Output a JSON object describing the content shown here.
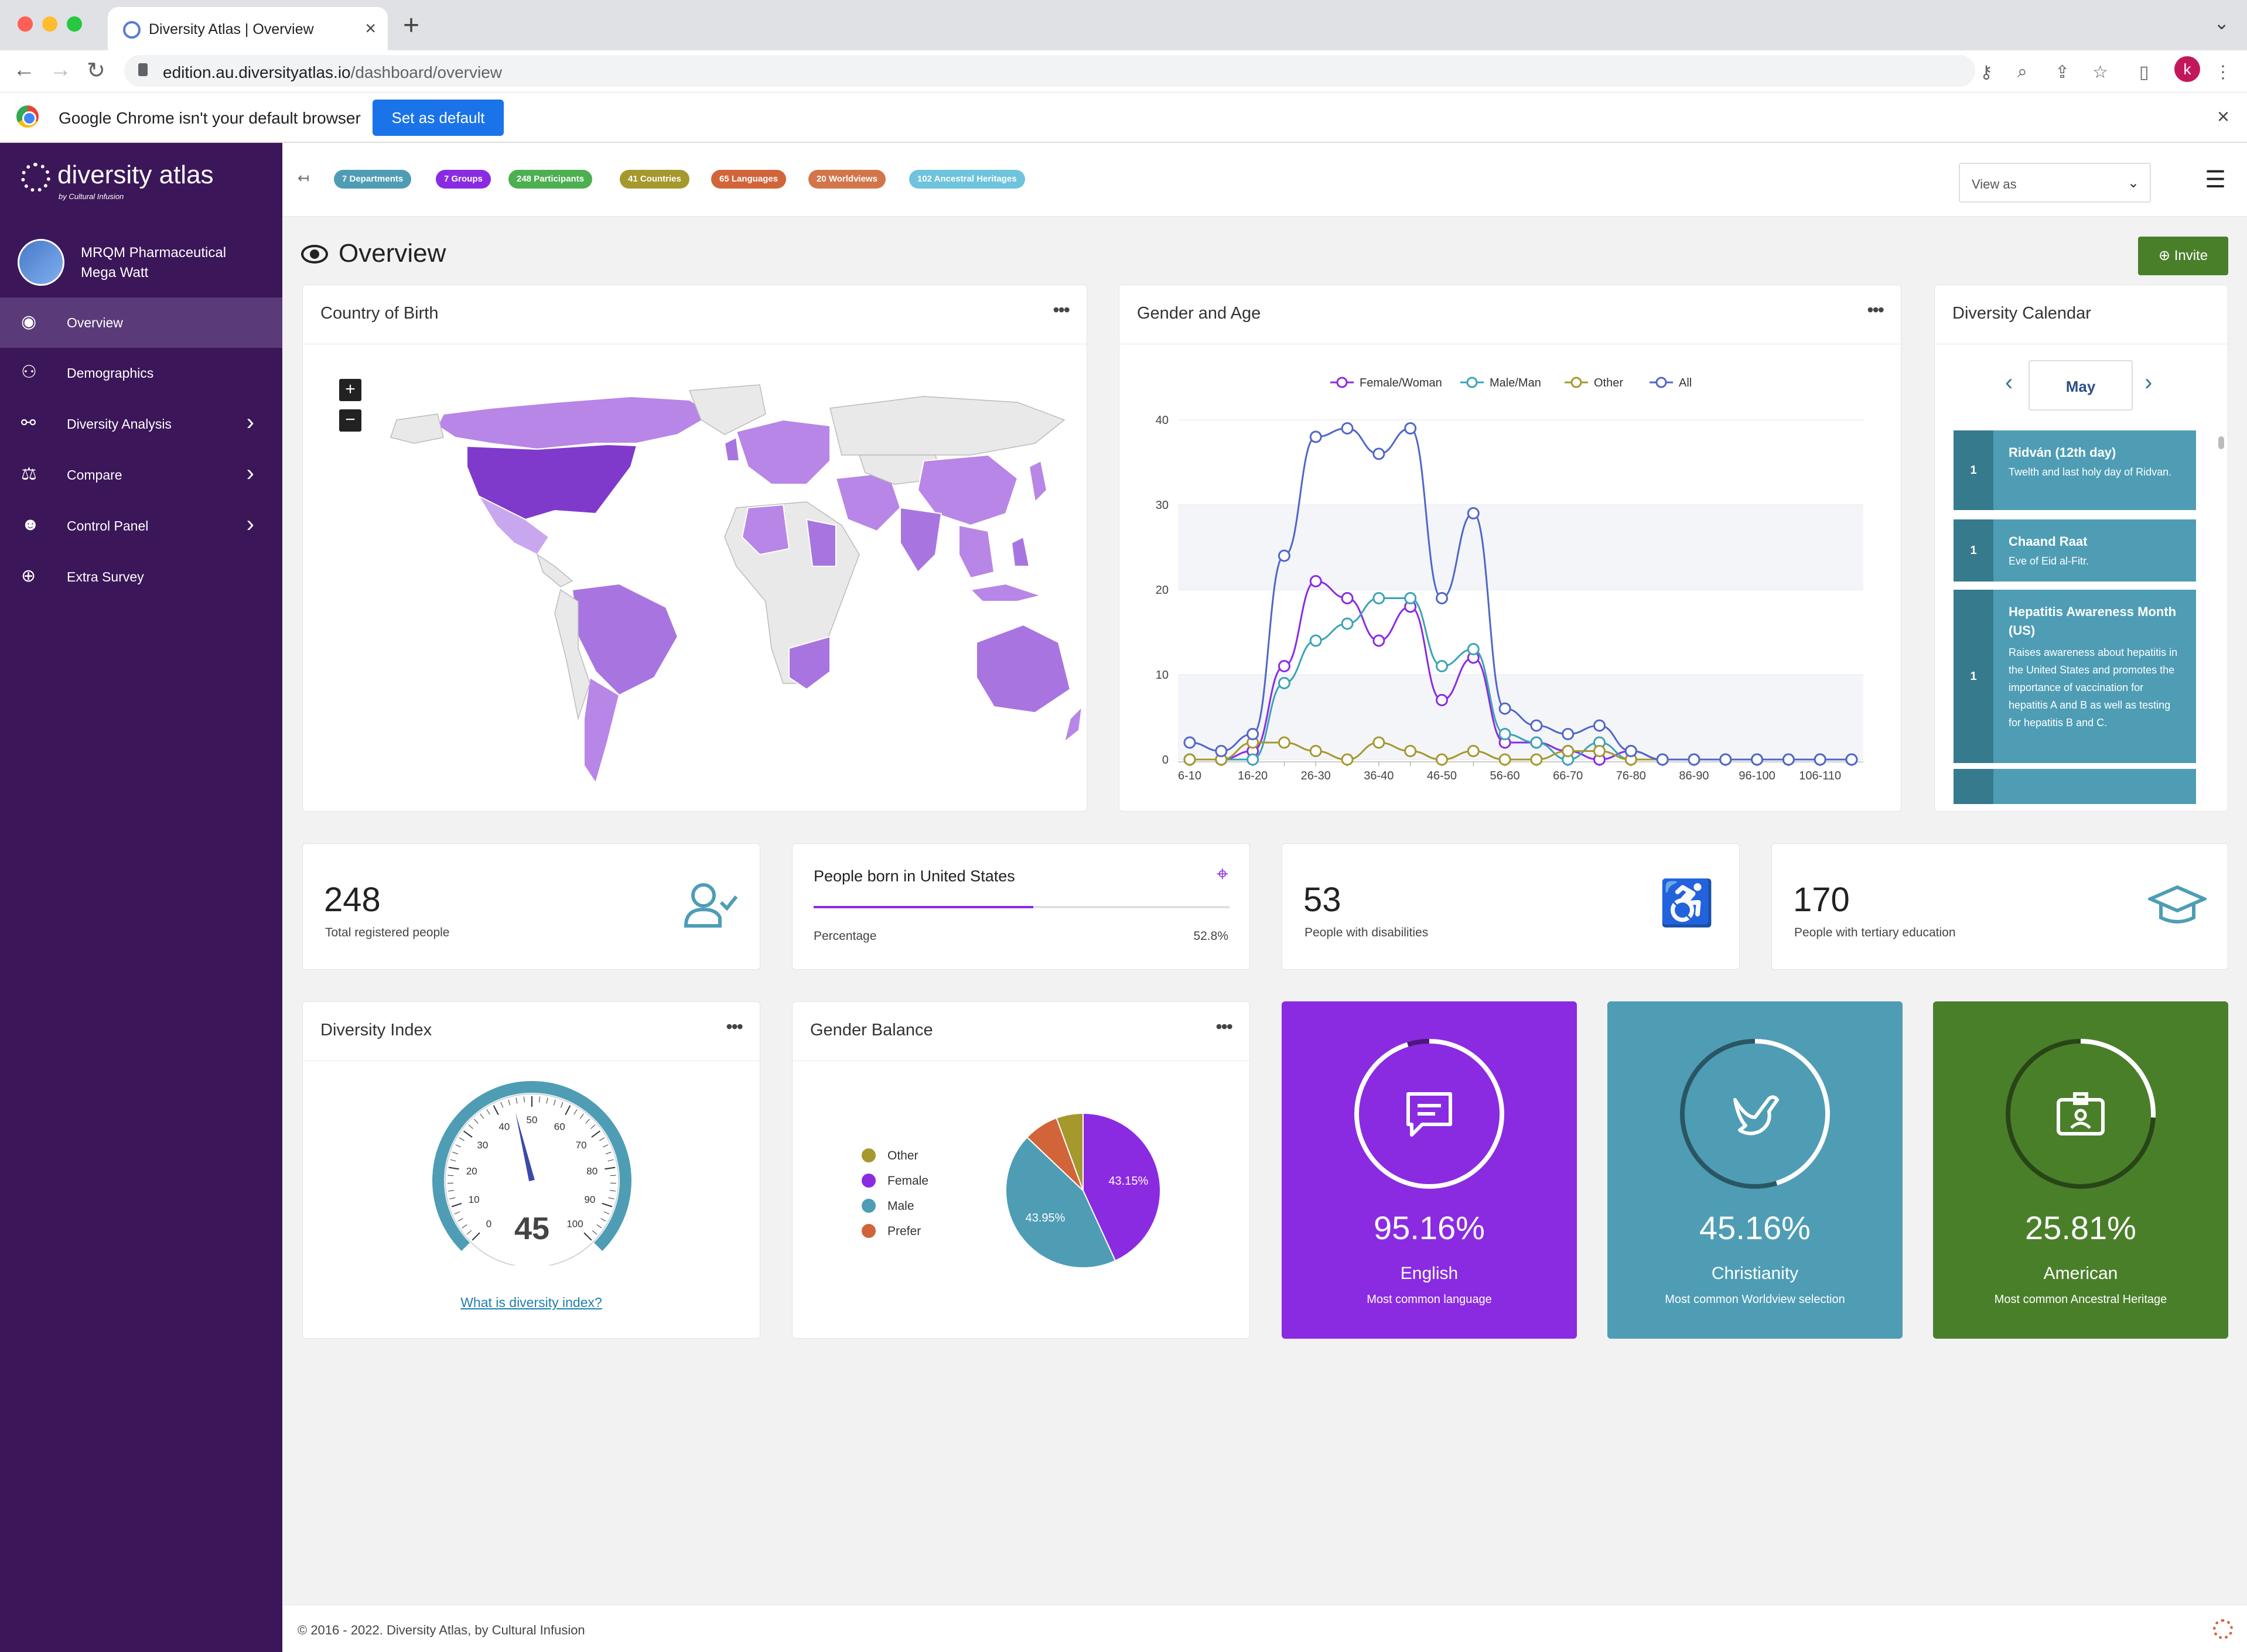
{
  "browser": {
    "tab_title": "Diversity Atlas | Overview",
    "url_host": "edition.au.diversityatlas.io",
    "url_path": "/dashboard/overview",
    "profile_initial": "k",
    "infobar_message": "Google Chrome isn't your default browser",
    "infobar_button": "Set as default"
  },
  "sidebar": {
    "brand": "diversity atlas",
    "brand_sub": "by Cultural Infusion",
    "org_line1": "MRQM Pharmaceutical",
    "org_line2": "Mega Watt",
    "items": [
      {
        "label": "Overview",
        "icon": "eye-icon"
      },
      {
        "label": "Demographics",
        "icon": "people-icon"
      },
      {
        "label": "Diversity Analysis",
        "icon": "network-icon"
      },
      {
        "label": "Compare",
        "icon": "scale-icon"
      },
      {
        "label": "Control Panel",
        "icon": "users-icon"
      },
      {
        "label": "Extra Survey",
        "icon": "plus-circle-icon"
      }
    ]
  },
  "topbar": {
    "pills": [
      {
        "label": "7 Departments",
        "color": "#4e9db5"
      },
      {
        "label": "7 Groups",
        "color": "#8a2be2"
      },
      {
        "label": "248 Participants",
        "color": "#4caf50"
      },
      {
        "label": "41 Countries",
        "color": "#a5982d"
      },
      {
        "label": "65 Languages",
        "color": "#d2643a"
      },
      {
        "label": "20 Worldviews",
        "color": "#d2754a"
      },
      {
        "label": "102 Ancestral Heritages",
        "color": "#6ec3dd"
      }
    ],
    "view_as": "View as"
  },
  "page": {
    "title": "Overview",
    "invite": "Invite"
  },
  "country_of_birth": {
    "title": "Country of Birth",
    "zoom_in": "+",
    "zoom_out": "−"
  },
  "gender_age": {
    "title": "Gender and Age",
    "chart_data": {
      "type": "line",
      "categories": [
        "6-10",
        "11-15",
        "16-20",
        "21-25",
        "26-30",
        "31-35",
        "36-40",
        "41-45",
        "46-50",
        "51-55",
        "56-60",
        "61-65",
        "66-70",
        "71-75",
        "76-80",
        "81-85",
        "86-90",
        "91-95",
        "96-100",
        "101-105",
        "106-110",
        "111-115"
      ],
      "tick_labels": [
        "6-10",
        "16-20",
        "26-30",
        "36-40",
        "46-50",
        "56-60",
        "66-70",
        "76-80",
        "86-90",
        "96-100",
        "106-110"
      ],
      "ylim": [
        0,
        40
      ],
      "yticks": [
        0,
        10,
        20,
        30,
        40
      ],
      "series": [
        {
          "name": "Female/Woman",
          "color": "#8a2be2",
          "values": [
            0,
            0,
            1,
            11,
            21,
            19,
            14,
            18,
            7,
            12,
            2,
            2,
            1,
            0,
            1,
            0,
            0,
            0,
            0,
            0,
            0,
            0
          ]
        },
        {
          "name": "Male/Man",
          "color": "#3aa3b5",
          "values": [
            0,
            0,
            0,
            9,
            14,
            16,
            19,
            19,
            11,
            13,
            3,
            2,
            0,
            2,
            0,
            0,
            0,
            0,
            0,
            0,
            0,
            0
          ]
        },
        {
          "name": "Other",
          "color": "#a5982d",
          "values": [
            0,
            0,
            2,
            2,
            1,
            0,
            2,
            1,
            0,
            1,
            0,
            0,
            1,
            1,
            0,
            0,
            0,
            0,
            0,
            0,
            0,
            0
          ]
        },
        {
          "name": "All",
          "color": "#5066c9",
          "values": [
            2,
            1,
            3,
            24,
            38,
            39,
            36,
            39,
            19,
            29,
            6,
            4,
            3,
            4,
            1,
            0,
            0,
            0,
            0,
            0,
            0,
            0
          ]
        }
      ]
    }
  },
  "calendar": {
    "title": "Diversity Calendar",
    "month": "May",
    "items": [
      {
        "day": "1",
        "title": "Ridván (12th day)",
        "desc": "Twelth and last holy day of Ridvan."
      },
      {
        "day": "1",
        "title": "Chaand Raat",
        "desc": "Eve of Eid al-Fitr."
      },
      {
        "day": "1",
        "title": "Hepatitis Awareness Month (US)",
        "desc": "Raises awareness about hepatitis in the United States and promotes the importance of vaccination for hepatitis A and B as well as testing for hepatitis B and C."
      }
    ]
  },
  "stats": {
    "registered": {
      "value": "248",
      "label": "Total registered people"
    },
    "born": {
      "title": "People born in United States",
      "label": "Percentage",
      "value": "52.8%",
      "progress": 0.528
    },
    "disabilities": {
      "value": "53",
      "label": "People with disabilities"
    },
    "tertiary": {
      "value": "170",
      "label": "People with tertiary education"
    }
  },
  "diversity_index": {
    "title": "Diversity Index",
    "value": "45",
    "value_num": 45,
    "ticks": [
      "0",
      "10",
      "20",
      "30",
      "40",
      "50",
      "60",
      "70",
      "80",
      "90",
      "100"
    ],
    "link": "What is diversity index?"
  },
  "gender_balance": {
    "title": "Gender Balance",
    "chart_data": {
      "type": "pie",
      "slices": [
        {
          "label": "Female",
          "value": 43.15,
          "color": "#8a2be2",
          "data_label": "43.15%"
        },
        {
          "label": "Male",
          "value": 43.95,
          "color": "#4e9db5",
          "data_label": "43.95%"
        },
        {
          "label": "Prefer",
          "value": 7.3,
          "color": "#d2643a",
          "data_label": ""
        },
        {
          "label": "Other",
          "value": 5.6,
          "color": "#a5982d",
          "data_label": ""
        }
      ],
      "legend": [
        "Other",
        "Female",
        "Male",
        "Prefer"
      ]
    }
  },
  "highlights": [
    {
      "pct": "95.16%",
      "fraction": 0.9516,
      "name": "English",
      "sub": "Most common language",
      "color": "#8a2be2",
      "icon": "message-icon"
    },
    {
      "pct": "45.16%",
      "fraction": 0.4516,
      "name": "Christianity",
      "sub": "Most common Worldview selection",
      "color": "#4e9db5",
      "icon": "dove-icon"
    },
    {
      "pct": "25.81%",
      "fraction": 0.2581,
      "name": "American",
      "sub": "Most common Ancestral Heritage",
      "color": "#4a7f2a",
      "icon": "id-badge-icon"
    }
  ],
  "footer": "© 2016 - 2022. Diversity Atlas, by Cultural Infusion"
}
